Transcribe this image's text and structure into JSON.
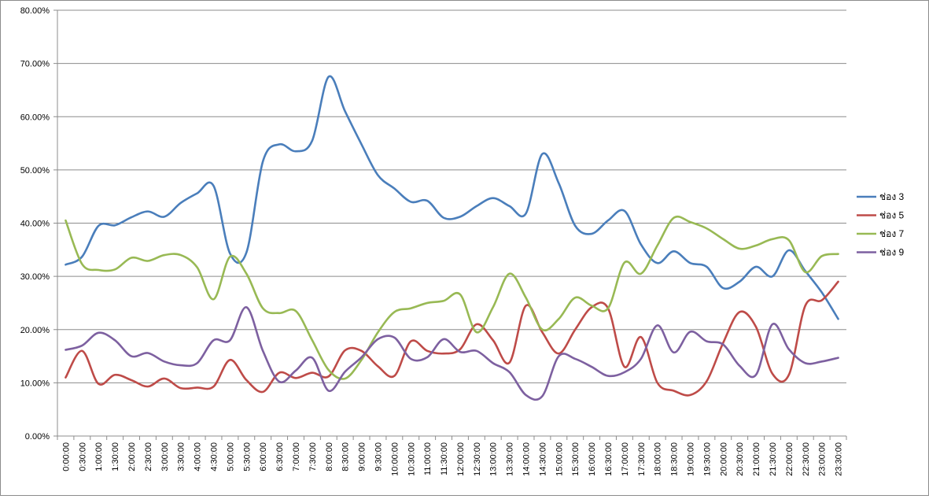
{
  "chart_data": {
    "type": "line",
    "title": "",
    "xlabel": "",
    "ylabel": "",
    "ylim": [
      0,
      0.8
    ],
    "y_tick_labels": [
      "0.00%",
      "10.00%",
      "20.00%",
      "30.00%",
      "40.00%",
      "50.00%",
      "60.00%",
      "70.00%",
      "80.00%"
    ],
    "grid": true,
    "legend_position": "right",
    "categories": [
      "0:00:00",
      "0:30:00",
      "1:00:00",
      "1:30:00",
      "2:00:00",
      "2:30:00",
      "3:00:00",
      "3:30:00",
      "4:00:00",
      "4:30:00",
      "5:00:00",
      "5:30:00",
      "6:00:00",
      "6:30:00",
      "7:00:00",
      "7:30:00",
      "8:00:00",
      "8:30:00",
      "9:00:00",
      "9:30:00",
      "10:00:00",
      "10:30:00",
      "11:00:00",
      "11:30:00",
      "12:00:00",
      "12:30:00",
      "13:00:00",
      "13:30:00",
      "14:00:00",
      "14:30:00",
      "15:00:00",
      "15:30:00",
      "16:00:00",
      "16:30:00",
      "17:00:00",
      "17:30:00",
      "18:00:00",
      "18:30:00",
      "19:00:00",
      "19:30:00",
      "20:00:00",
      "20:30:00",
      "21:00:00",
      "21:30:00",
      "22:00:00",
      "22:30:00",
      "23:00:00",
      "23:30:00"
    ],
    "series": [
      {
        "name": "ช่อง 3",
        "color": "#4a7ebb",
        "values": [
          0.322,
          0.337,
          0.395,
          0.396,
          0.411,
          0.422,
          0.412,
          0.438,
          0.456,
          0.47,
          0.343,
          0.345,
          0.516,
          0.548,
          0.535,
          0.555,
          0.675,
          0.61,
          0.548,
          0.49,
          0.465,
          0.44,
          0.442,
          0.41,
          0.412,
          0.432,
          0.447,
          0.432,
          0.418,
          0.53,
          0.475,
          0.395,
          0.38,
          0.405,
          0.423,
          0.36,
          0.325,
          0.347,
          0.325,
          0.318,
          0.278,
          0.29,
          0.318,
          0.3,
          0.349,
          0.31,
          0.27,
          0.22
        ]
      },
      {
        "name": "ช่อง 5",
        "color": "#be4b48",
        "values": [
          0.11,
          0.16,
          0.098,
          0.115,
          0.105,
          0.093,
          0.108,
          0.09,
          0.091,
          0.093,
          0.143,
          0.105,
          0.083,
          0.119,
          0.109,
          0.119,
          0.112,
          0.161,
          0.16,
          0.131,
          0.113,
          0.178,
          0.16,
          0.155,
          0.163,
          0.21,
          0.18,
          0.138,
          0.245,
          0.195,
          0.155,
          0.2,
          0.242,
          0.24,
          0.13,
          0.186,
          0.1,
          0.085,
          0.077,
          0.103,
          0.175,
          0.233,
          0.205,
          0.117,
          0.115,
          0.245,
          0.255,
          0.29
        ]
      },
      {
        "name": "ช่อง 7",
        "color": "#98b954",
        "values": [
          0.405,
          0.323,
          0.312,
          0.313,
          0.335,
          0.329,
          0.34,
          0.34,
          0.317,
          0.257,
          0.337,
          0.305,
          0.24,
          0.231,
          0.235,
          0.18,
          0.124,
          0.108,
          0.143,
          0.195,
          0.233,
          0.24,
          0.25,
          0.254,
          0.266,
          0.195,
          0.242,
          0.305,
          0.26,
          0.2,
          0.22,
          0.26,
          0.245,
          0.24,
          0.326,
          0.305,
          0.358,
          0.41,
          0.402,
          0.39,
          0.37,
          0.352,
          0.358,
          0.37,
          0.368,
          0.308,
          0.338,
          0.342
        ]
      },
      {
        "name": "ช่อง 9",
        "color": "#7d60a0",
        "values": [
          0.162,
          0.17,
          0.194,
          0.18,
          0.15,
          0.156,
          0.14,
          0.133,
          0.137,
          0.18,
          0.18,
          0.242,
          0.16,
          0.102,
          0.123,
          0.147,
          0.085,
          0.121,
          0.148,
          0.182,
          0.185,
          0.145,
          0.148,
          0.182,
          0.158,
          0.16,
          0.137,
          0.12,
          0.077,
          0.075,
          0.15,
          0.145,
          0.13,
          0.113,
          0.12,
          0.145,
          0.208,
          0.157,
          0.196,
          0.178,
          0.172,
          0.132,
          0.115,
          0.21,
          0.163,
          0.137,
          0.14,
          0.147
        ]
      }
    ]
  }
}
